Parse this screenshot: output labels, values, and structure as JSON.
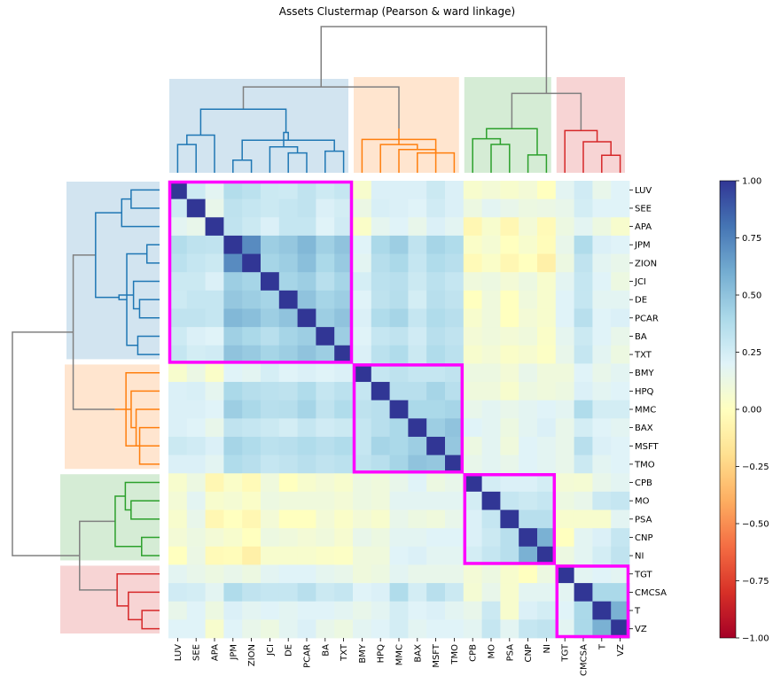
{
  "chart_data": {
    "type": "heatmap",
    "title": "Assets Clustermap (Pearson & ward linkage)",
    "labels": [
      "LUV",
      "SEE",
      "APA",
      "JPM",
      "ZION",
      "JCI",
      "DE",
      "PCAR",
      "BA",
      "TXT",
      "BMY",
      "HPQ",
      "MMC",
      "BAX",
      "MSFT",
      "TMO",
      "CPB",
      "MO",
      "PSA",
      "CNP",
      "NI",
      "TGT",
      "CMCSA",
      "T",
      "VZ"
    ],
    "clusters": [
      {
        "members": [
          "LUV",
          "SEE",
          "APA",
          "JPM",
          "ZION",
          "JCI",
          "DE",
          "PCAR",
          "BA",
          "TXT"
        ],
        "color": "#1f77b4"
      },
      {
        "members": [
          "BMY",
          "HPQ",
          "MMC",
          "BAX",
          "MSFT",
          "TMO"
        ],
        "color": "#ff7f0e"
      },
      {
        "members": [
          "CPB",
          "MO",
          "PSA",
          "CNP",
          "NI"
        ],
        "color": "#2ca02c"
      },
      {
        "members": [
          "TGT",
          "CMCSA",
          "T",
          "VZ"
        ],
        "color": "#d62728"
      }
    ],
    "highlight_color": "#ff00ff",
    "colorbar": {
      "cmap": "RdYlBu",
      "vmin": -1.0,
      "vmax": 1.0,
      "ticks": [
        "1.00",
        "0.75",
        "0.50",
        "0.25",
        "0.00",
        "−0.25",
        "−0.50",
        "−0.75",
        "−1.00"
      ]
    },
    "matrix": [
      [
        1.0,
        0.27,
        0.18,
        0.37,
        0.34,
        0.28,
        0.27,
        0.32,
        0.27,
        0.3,
        0.05,
        0.22,
        0.22,
        0.22,
        0.28,
        0.22,
        0.05,
        0.08,
        0.05,
        0.08,
        0.0,
        0.18,
        0.26,
        0.15,
        0.2
      ],
      [
        0.27,
        1.0,
        0.15,
        0.33,
        0.3,
        0.28,
        0.3,
        0.32,
        0.22,
        0.25,
        0.13,
        0.23,
        0.22,
        0.2,
        0.26,
        0.22,
        0.12,
        0.18,
        0.15,
        0.12,
        0.13,
        0.15,
        0.25,
        0.2,
        0.2
      ],
      [
        0.18,
        0.15,
        1.0,
        0.32,
        0.28,
        0.22,
        0.3,
        0.3,
        0.2,
        0.26,
        0.03,
        0.17,
        0.2,
        0.15,
        0.22,
        0.18,
        -0.05,
        0.05,
        -0.05,
        0.08,
        -0.03,
        0.12,
        0.18,
        0.12,
        0.05
      ],
      [
        0.37,
        0.33,
        0.32,
        1.0,
        0.72,
        0.45,
        0.48,
        0.55,
        0.44,
        0.5,
        0.2,
        0.4,
        0.45,
        0.32,
        0.42,
        0.38,
        0.03,
        0.07,
        0.0,
        0.05,
        -0.02,
        0.15,
        0.38,
        0.22,
        0.2
      ],
      [
        0.34,
        0.3,
        0.28,
        0.72,
        1.0,
        0.42,
        0.45,
        0.52,
        0.4,
        0.47,
        0.18,
        0.36,
        0.4,
        0.3,
        0.38,
        0.35,
        -0.03,
        0.03,
        -0.05,
        0.0,
        -0.1,
        0.12,
        0.32,
        0.18,
        0.15
      ],
      [
        0.28,
        0.28,
        0.22,
        0.45,
        0.42,
        1.0,
        0.42,
        0.45,
        0.35,
        0.42,
        0.24,
        0.34,
        0.35,
        0.28,
        0.34,
        0.3,
        0.1,
        0.12,
        0.08,
        0.12,
        0.05,
        0.18,
        0.3,
        0.2,
        0.12
      ],
      [
        0.27,
        0.3,
        0.3,
        0.48,
        0.45,
        0.42,
        1.0,
        0.5,
        0.42,
        0.45,
        0.2,
        0.33,
        0.36,
        0.25,
        0.35,
        0.32,
        0.0,
        0.1,
        0.0,
        0.1,
        0.05,
        0.2,
        0.3,
        0.18,
        0.18
      ],
      [
        0.32,
        0.32,
        0.3,
        0.55,
        0.52,
        0.45,
        0.5,
        1.0,
        0.45,
        0.5,
        0.22,
        0.38,
        0.42,
        0.3,
        0.38,
        0.35,
        0.05,
        0.1,
        0.0,
        0.08,
        0.05,
        0.2,
        0.35,
        0.2,
        0.22
      ],
      [
        0.27,
        0.22,
        0.2,
        0.44,
        0.4,
        0.35,
        0.42,
        0.45,
        1.0,
        0.45,
        0.2,
        0.3,
        0.32,
        0.26,
        0.35,
        0.32,
        0.08,
        0.1,
        0.08,
        0.1,
        0.03,
        0.17,
        0.28,
        0.2,
        0.15
      ],
      [
        0.3,
        0.25,
        0.26,
        0.5,
        0.47,
        0.42,
        0.45,
        0.5,
        0.45,
        1.0,
        0.22,
        0.34,
        0.38,
        0.28,
        0.38,
        0.34,
        0.05,
        0.08,
        0.03,
        0.06,
        0.02,
        0.15,
        0.3,
        0.18,
        0.12
      ],
      [
        0.05,
        0.13,
        0.03,
        0.2,
        0.18,
        0.24,
        0.2,
        0.22,
        0.2,
        0.22,
        1.0,
        0.3,
        0.33,
        0.3,
        0.3,
        0.32,
        0.12,
        0.12,
        0.08,
        0.15,
        0.1,
        0.1,
        0.2,
        0.15,
        0.18
      ],
      [
        0.22,
        0.23,
        0.17,
        0.4,
        0.36,
        0.34,
        0.33,
        0.38,
        0.3,
        0.34,
        0.3,
        1.0,
        0.35,
        0.35,
        0.42,
        0.35,
        0.1,
        0.1,
        0.05,
        0.12,
        0.1,
        0.12,
        0.22,
        0.18,
        0.2
      ],
      [
        0.22,
        0.22,
        0.2,
        0.45,
        0.4,
        0.35,
        0.36,
        0.42,
        0.32,
        0.38,
        0.33,
        0.35,
        1.0,
        0.4,
        0.4,
        0.42,
        0.15,
        0.18,
        0.15,
        0.18,
        0.2,
        0.18,
        0.38,
        0.25,
        0.25
      ],
      [
        0.22,
        0.2,
        0.15,
        0.32,
        0.3,
        0.28,
        0.25,
        0.3,
        0.26,
        0.28,
        0.3,
        0.35,
        0.4,
        1.0,
        0.45,
        0.5,
        0.2,
        0.18,
        0.12,
        0.18,
        0.22,
        0.15,
        0.25,
        0.2,
        0.18
      ],
      [
        0.28,
        0.26,
        0.22,
        0.42,
        0.38,
        0.34,
        0.35,
        0.38,
        0.35,
        0.38,
        0.3,
        0.42,
        0.4,
        0.45,
        1.0,
        0.48,
        0.12,
        0.18,
        0.1,
        0.2,
        0.18,
        0.15,
        0.35,
        0.22,
        0.2
      ],
      [
        0.22,
        0.22,
        0.18,
        0.38,
        0.35,
        0.3,
        0.32,
        0.35,
        0.32,
        0.34,
        0.32,
        0.35,
        0.42,
        0.5,
        0.48,
        1.0,
        0.15,
        0.18,
        0.15,
        0.2,
        0.18,
        0.15,
        0.28,
        0.18,
        0.2
      ],
      [
        0.05,
        0.12,
        -0.05,
        0.03,
        -0.03,
        0.1,
        0.0,
        0.05,
        0.08,
        0.05,
        0.12,
        0.1,
        0.15,
        0.2,
        0.12,
        0.15,
        1.0,
        0.25,
        0.22,
        0.22,
        0.25,
        0.08,
        0.07,
        0.15,
        0.18
      ],
      [
        0.08,
        0.18,
        0.05,
        0.07,
        0.03,
        0.12,
        0.1,
        0.1,
        0.1,
        0.08,
        0.12,
        0.1,
        0.18,
        0.18,
        0.18,
        0.18,
        0.25,
        1.0,
        0.3,
        0.28,
        0.3,
        0.12,
        0.15,
        0.28,
        0.3
      ],
      [
        0.05,
        0.15,
        -0.05,
        0.0,
        -0.05,
        0.08,
        0.0,
        0.0,
        0.08,
        0.03,
        0.08,
        0.05,
        0.15,
        0.12,
        0.1,
        0.15,
        0.22,
        0.3,
        1.0,
        0.35,
        0.35,
        0.05,
        0.05,
        0.05,
        0.18
      ],
      [
        0.08,
        0.12,
        0.08,
        0.05,
        0.0,
        0.12,
        0.1,
        0.08,
        0.1,
        0.06,
        0.15,
        0.12,
        0.18,
        0.18,
        0.2,
        0.2,
        0.22,
        0.28,
        0.35,
        1.0,
        0.58,
        0.0,
        0.18,
        0.22,
        0.3
      ],
      [
        0.0,
        0.13,
        -0.03,
        -0.02,
        -0.1,
        0.05,
        0.05,
        0.05,
        0.03,
        0.02,
        0.1,
        0.1,
        0.2,
        0.22,
        0.18,
        0.18,
        0.25,
        0.3,
        0.35,
        0.58,
        1.0,
        0.12,
        0.18,
        0.25,
        0.32
      ],
      [
        0.18,
        0.15,
        0.12,
        0.15,
        0.12,
        0.18,
        0.2,
        0.2,
        0.17,
        0.15,
        0.1,
        0.12,
        0.18,
        0.15,
        0.15,
        0.15,
        0.08,
        0.12,
        0.05,
        0.0,
        0.12,
        1.0,
        0.18,
        0.2,
        0.18
      ],
      [
        0.26,
        0.25,
        0.18,
        0.38,
        0.32,
        0.3,
        0.3,
        0.35,
        0.28,
        0.3,
        0.2,
        0.22,
        0.38,
        0.25,
        0.35,
        0.28,
        0.07,
        0.15,
        0.05,
        0.18,
        0.18,
        0.18,
        1.0,
        0.4,
        0.4
      ],
      [
        0.15,
        0.2,
        0.12,
        0.22,
        0.18,
        0.2,
        0.18,
        0.2,
        0.2,
        0.18,
        0.15,
        0.18,
        0.25,
        0.2,
        0.22,
        0.18,
        0.15,
        0.28,
        0.05,
        0.22,
        0.25,
        0.2,
        0.4,
        1.0,
        0.58
      ],
      [
        0.2,
        0.2,
        0.05,
        0.2,
        0.15,
        0.12,
        0.18,
        0.22,
        0.15,
        0.12,
        0.18,
        0.2,
        0.25,
        0.18,
        0.2,
        0.2,
        0.18,
        0.3,
        0.18,
        0.3,
        0.32,
        0.18,
        0.4,
        0.58,
        1.0
      ]
    ]
  }
}
